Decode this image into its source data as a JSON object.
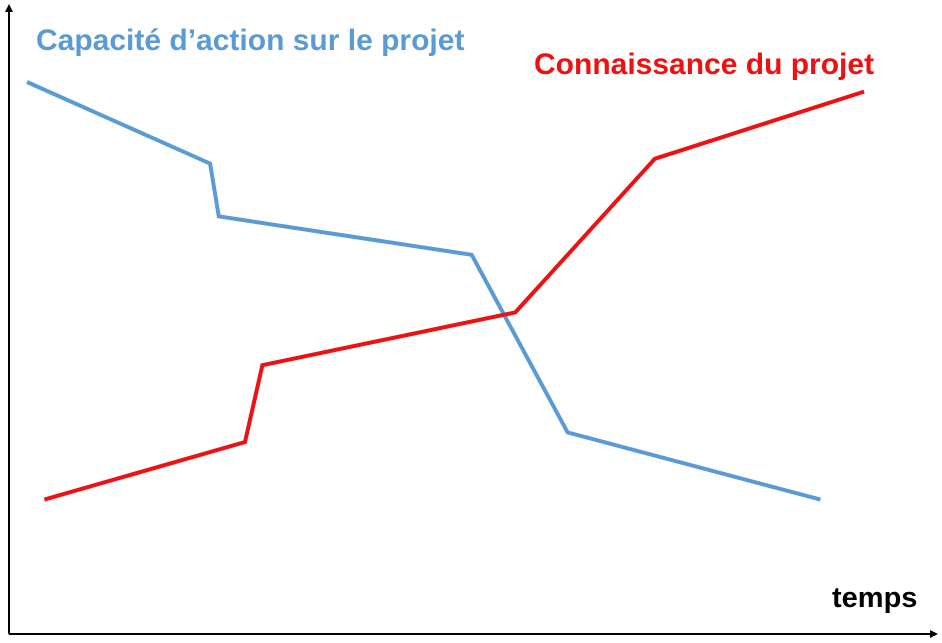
{
  "chart_data": {
    "type": "line",
    "title": "",
    "xlabel": "temps",
    "ylabel": "",
    "grid": false,
    "legend": "inline-labels",
    "xlim": [
      0,
      100
    ],
    "ylim": [
      0,
      100
    ],
    "series": [
      {
        "name": "Capacité d’action sur le projet",
        "color": "#5b9bd5",
        "x": [
          0,
          21,
          22,
          51,
          62,
          91
        ],
        "y": [
          100,
          83,
          72,
          64,
          27,
          13
        ]
      },
      {
        "name": "Connaissance du projet",
        "color": "#ee1111",
        "x": [
          2,
          25,
          27,
          56,
          72,
          96
        ],
        "y": [
          13,
          25,
          41,
          52,
          84,
          98
        ]
      }
    ]
  }
}
